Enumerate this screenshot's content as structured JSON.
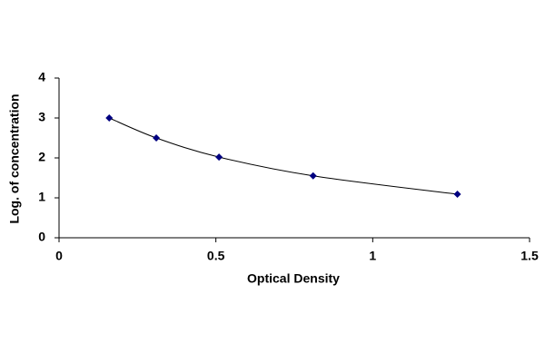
{
  "chart_data": {
    "type": "line",
    "x_label": "Optical Density",
    "y_label": "Log. of concentration",
    "x": [
      0.16,
      0.31,
      0.51,
      0.81,
      1.27
    ],
    "series": [
      {
        "color": "#000080",
        "values": [
          3.0,
          2.5,
          2.02,
          1.55,
          1.09
        ]
      }
    ],
    "xlim": [
      0,
      1.5
    ],
    "xticks": [
      0,
      0.5,
      1,
      1.5
    ],
    "ylim": [
      0,
      4
    ],
    "yticks": [
      0,
      1,
      2,
      3,
      4
    ],
    "grid": false,
    "smooth": true
  }
}
